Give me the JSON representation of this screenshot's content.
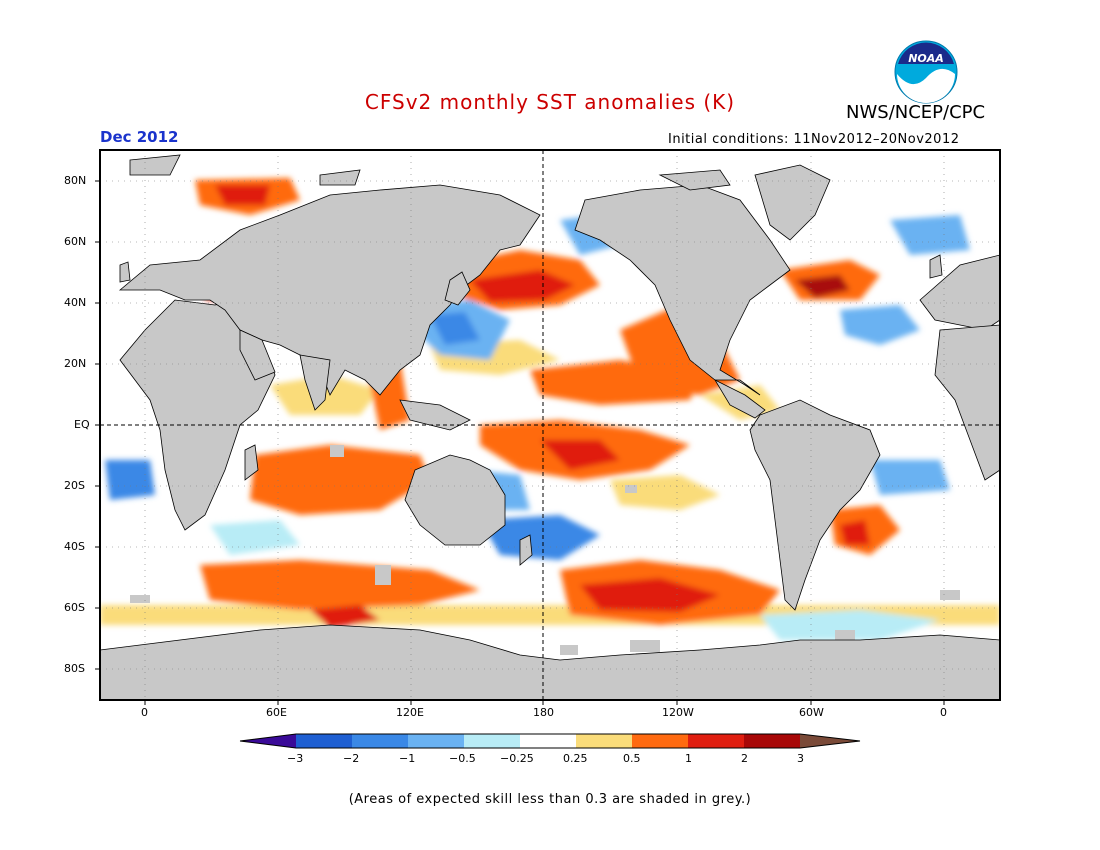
{
  "title": "CFSv2 monthly SST anomalies (K)",
  "agency": "NWS/NCEP/CPC",
  "month": "Dec 2012",
  "initial_conditions": "Initial conditions: 11Nov2012–20Nov2012",
  "footnote": "(Areas of expected skill less than 0.3 are shaded in grey.)",
  "logo_text": "NOAA",
  "lat_labels": [
    "80N",
    "60N",
    "40N",
    "20N",
    "EQ",
    "20S",
    "40S",
    "60S",
    "80S"
  ],
  "lon_labels": [
    "0",
    "60E",
    "120E",
    "180",
    "120W",
    "60W",
    "0"
  ],
  "colorbar": {
    "labels": [
      "−3",
      "−2",
      "−1",
      "−0.5",
      "−0.25",
      "0.25",
      "0.5",
      "1",
      "2",
      "3"
    ],
    "colors": [
      "#3a0a98",
      "#1e5fd2",
      "#3a88e6",
      "#6ab2f2",
      "#b8ecf6",
      "#ffffff",
      "#fadc7a",
      "#ff6a10",
      "#e01e10",
      "#a80808",
      "#7a4a38"
    ]
  },
  "colors": {
    "land": "#c8c8c8",
    "title": "#cc0000",
    "month": "#1a33cc"
  }
}
